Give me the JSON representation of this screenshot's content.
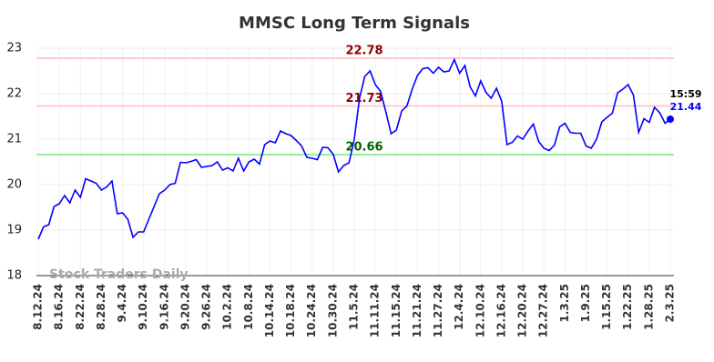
{
  "chart_data": {
    "type": "line",
    "title": "MMSC Long Term Signals",
    "watermark": "Stock Traders Daily",
    "last_time": "15:59",
    "categories": [
      "8.12.24",
      null,
      null,
      null,
      "8.16.24",
      null,
      null,
      null,
      "8.22.24",
      null,
      null,
      null,
      "8.28.24",
      null,
      null,
      null,
      "9.4.24",
      null,
      null,
      null,
      "9.10.24",
      null,
      null,
      null,
      "9.16.24",
      null,
      null,
      null,
      "9.20.24",
      null,
      null,
      null,
      "9.26.24",
      null,
      null,
      null,
      "10.2.24",
      null,
      null,
      null,
      "10.8.24",
      null,
      null,
      null,
      "10.14.24",
      null,
      null,
      null,
      "10.18.24",
      null,
      null,
      null,
      "10.24.24",
      null,
      null,
      null,
      "10.30.24",
      null,
      null,
      null,
      "11.5.24",
      null,
      null,
      null,
      "11.11.24",
      null,
      null,
      null,
      "11.15.24",
      null,
      null,
      null,
      "11.21.24",
      null,
      null,
      null,
      "11.27.24",
      null,
      null,
      null,
      "12.4.24",
      null,
      null,
      null,
      "12.10.24",
      null,
      null,
      null,
      "12.16.24",
      null,
      null,
      null,
      "12.20.24",
      null,
      null,
      null,
      "12.27.24",
      null,
      null,
      null,
      "1.3.25",
      null,
      null,
      null,
      "1.9.25",
      null,
      null,
      null,
      "1.15.25",
      null,
      null,
      null,
      "1.22.25",
      null,
      null,
      null,
      "1.28.25",
      null,
      null,
      null,
      "2.3.25"
    ],
    "series": [
      {
        "color": "#0000ff",
        "values": [
          18.8,
          19.07,
          19.12,
          19.52,
          19.58,
          19.76,
          19.6,
          19.88,
          19.72,
          20.13,
          20.08,
          20.03,
          19.88,
          19.95,
          20.08,
          19.36,
          19.38,
          19.24,
          18.84,
          18.96,
          18.96,
          19.24,
          19.52,
          19.8,
          19.88,
          20.0,
          20.03,
          20.49,
          20.48,
          20.51,
          20.55,
          20.38,
          20.4,
          20.42,
          20.5,
          20.32,
          20.37,
          20.3,
          20.58,
          20.3,
          20.5,
          20.56,
          20.45,
          20.88,
          20.96,
          20.92,
          21.18,
          21.12,
          21.08,
          20.97,
          20.85,
          20.6,
          20.58,
          20.55,
          20.82,
          20.81,
          20.67,
          20.28,
          20.42,
          20.48,
          21.0,
          21.9,
          22.38,
          22.5,
          22.2,
          22.05,
          21.6,
          21.12,
          21.2,
          21.62,
          21.73,
          22.1,
          22.4,
          22.55,
          22.57,
          22.45,
          22.58,
          22.48,
          22.5,
          22.75,
          22.45,
          22.62,
          22.15,
          21.95,
          22.28,
          22.03,
          21.9,
          22.12,
          21.83,
          20.88,
          20.93,
          21.07,
          21.0,
          21.18,
          21.33,
          20.95,
          20.8,
          20.75,
          20.87,
          21.27,
          21.35,
          21.15,
          21.13,
          21.13,
          20.85,
          20.8,
          21.0,
          21.38,
          21.48,
          21.57,
          22.02,
          22.1,
          22.2,
          21.97,
          21.15,
          21.45,
          21.37,
          21.7,
          21.58,
          21.35,
          21.44
        ]
      }
    ],
    "reference_lines": [
      {
        "value": 22.78,
        "color": "#ffcccc",
        "label_color": "#8b0000"
      },
      {
        "value": 21.73,
        "color": "#ffcccc",
        "label_color": "#8b0000"
      },
      {
        "value": 20.66,
        "color": "#99ee99",
        "label_color": "#006400"
      }
    ],
    "ylim": [
      18,
      23
    ],
    "yticks": [
      18,
      19,
      20,
      21,
      22,
      23
    ],
    "grid": true
  }
}
